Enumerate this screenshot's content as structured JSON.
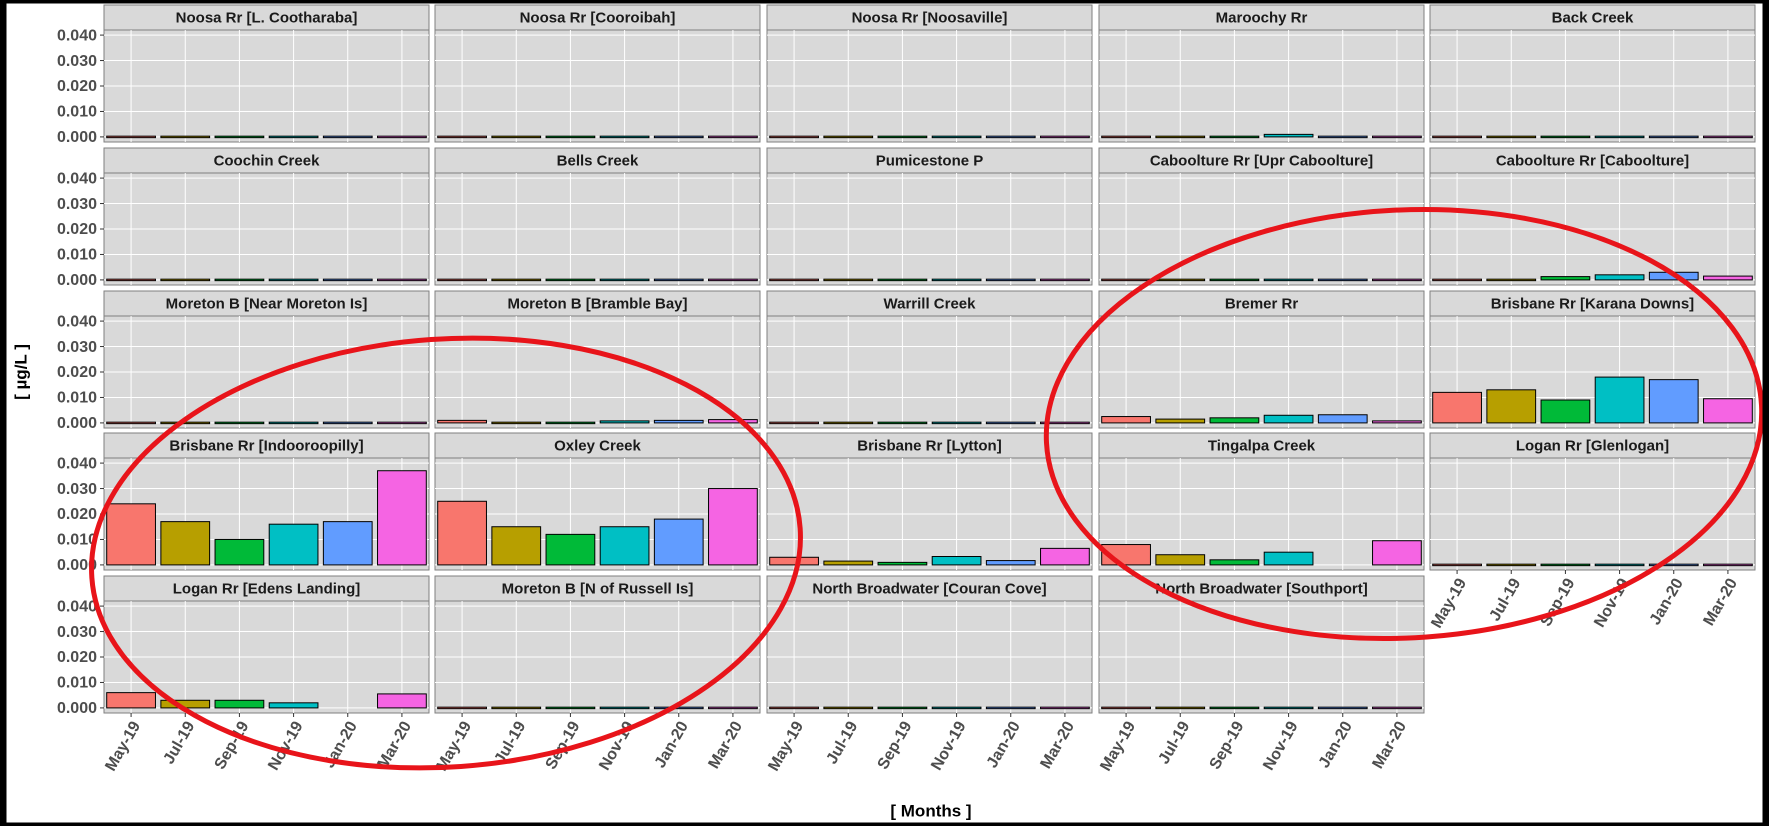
{
  "ylabel": "[ µg/L ]",
  "xlabel": "[ Months ]",
  "categories": [
    "May-19",
    "Jul-19",
    "Sep-19",
    "Nov-19",
    "Jan-20",
    "Mar-20"
  ],
  "colors": [
    "#F8766D",
    "#B79F00",
    "#00BA38",
    "#00BFC4",
    "#619CFF",
    "#F564E3"
  ],
  "ylim": [
    -0.002,
    0.042
  ],
  "yticks": [
    {
      "value": 0,
      "label": "0.000"
    },
    {
      "value": 0.01,
      "label": "0.010"
    },
    {
      "value": 0.02,
      "label": "0.020"
    },
    {
      "value": 0.03,
      "label": "0.030"
    },
    {
      "value": 0.04,
      "label": "0.040"
    }
  ],
  "chart_data": [
    {
      "type": "bar",
      "title": "Noosa Rr [L. Cootharaba]",
      "values": [
        0,
        0,
        0,
        0,
        0,
        0
      ]
    },
    {
      "type": "bar",
      "title": "Noosa Rr [Cooroibah]",
      "values": [
        0,
        0,
        0,
        0,
        0,
        0
      ]
    },
    {
      "type": "bar",
      "title": "Noosa Rr [Noosaville]",
      "values": [
        0,
        0,
        0,
        0,
        0,
        0
      ]
    },
    {
      "type": "bar",
      "title": "Maroochy Rr",
      "values": [
        0,
        0,
        0,
        0.001,
        0,
        0
      ]
    },
    {
      "type": "bar",
      "title": "Back Creek",
      "values": [
        0,
        0,
        0,
        0.0005,
        0,
        0.0005
      ]
    },
    {
      "type": "bar",
      "title": "Coochin Creek",
      "values": [
        0,
        0,
        0,
        0.0005,
        0,
        0.0005
      ]
    },
    {
      "type": "bar",
      "title": "Bells Creek",
      "values": [
        0,
        0.0003,
        0,
        0.0003,
        0.0003,
        0.0005
      ]
    },
    {
      "type": "bar",
      "title": "Pumicestone P",
      "values": [
        0,
        0,
        0,
        0.0003,
        0,
        0.0005
      ]
    },
    {
      "type": "bar",
      "title": "Caboolture Rr [Upr Caboolture]",
      "values": [
        0,
        0,
        0,
        0,
        0,
        0
      ]
    },
    {
      "type": "bar",
      "title": "Caboolture Rr [Caboolture]",
      "values": [
        0.0005,
        0,
        0.0013,
        0.002,
        0.003,
        0.0015
      ]
    },
    {
      "type": "bar",
      "title": "Moreton B [Near Moreton Is]",
      "values": [
        0,
        0,
        0,
        0,
        0,
        0
      ]
    },
    {
      "type": "bar",
      "title": "Moreton B [Bramble Bay]",
      "values": [
        0.001,
        0.0003,
        0,
        0.0008,
        0.001,
        0.0013
      ]
    },
    {
      "type": "bar",
      "title": "Warrill Creek",
      "values": [
        0,
        0,
        0,
        0,
        0,
        0.0003
      ]
    },
    {
      "type": "bar",
      "title": "Bremer Rr",
      "values": [
        0.0025,
        0.0015,
        0.002,
        0.003,
        0.0032,
        0.0008
      ]
    },
    {
      "type": "bar",
      "title": "Brisbane Rr [Karana Downs]",
      "values": [
        0.012,
        0.013,
        0.009,
        0.018,
        0.017,
        0.0095
      ]
    },
    {
      "type": "bar",
      "title": "Brisbane Rr [Indooroopilly]",
      "values": [
        0.024,
        0.017,
        0.01,
        0.016,
        0.017,
        0.037
      ]
    },
    {
      "type": "bar",
      "title": "Oxley Creek",
      "values": [
        0.025,
        0.015,
        0.012,
        0.015,
        0.018,
        0.03
      ]
    },
    {
      "type": "bar",
      "title": "Brisbane Rr [Lytton]",
      "values": [
        0.003,
        0.0015,
        0.001,
        0.0033,
        0.0017,
        0.0065
      ]
    },
    {
      "type": "bar",
      "title": "Tingalpa Creek",
      "values": [
        0.008,
        0.004,
        0.002,
        0.005,
        null,
        0.0095
      ]
    },
    {
      "type": "bar",
      "title": "Logan Rr [Glenlogan]",
      "values": [
        0,
        0,
        0,
        0,
        0,
        0
      ]
    },
    {
      "type": "bar",
      "title": "Logan Rr [Edens Landing]",
      "values": [
        0.006,
        0.003,
        0.003,
        0.002,
        null,
        0.0055
      ]
    },
    {
      "type": "bar",
      "title": "Moreton B [N of Russell Is]",
      "values": [
        0,
        0,
        0,
        0,
        0,
        0
      ]
    },
    {
      "type": "bar",
      "title": "North Broadwater [Couran Cove]",
      "values": [
        0,
        0,
        0,
        0,
        0,
        0.0003
      ]
    },
    {
      "type": "bar",
      "title": "North Broadwater [Southport]",
      "values": [
        0,
        0,
        0,
        0,
        0,
        0
      ]
    }
  ]
}
